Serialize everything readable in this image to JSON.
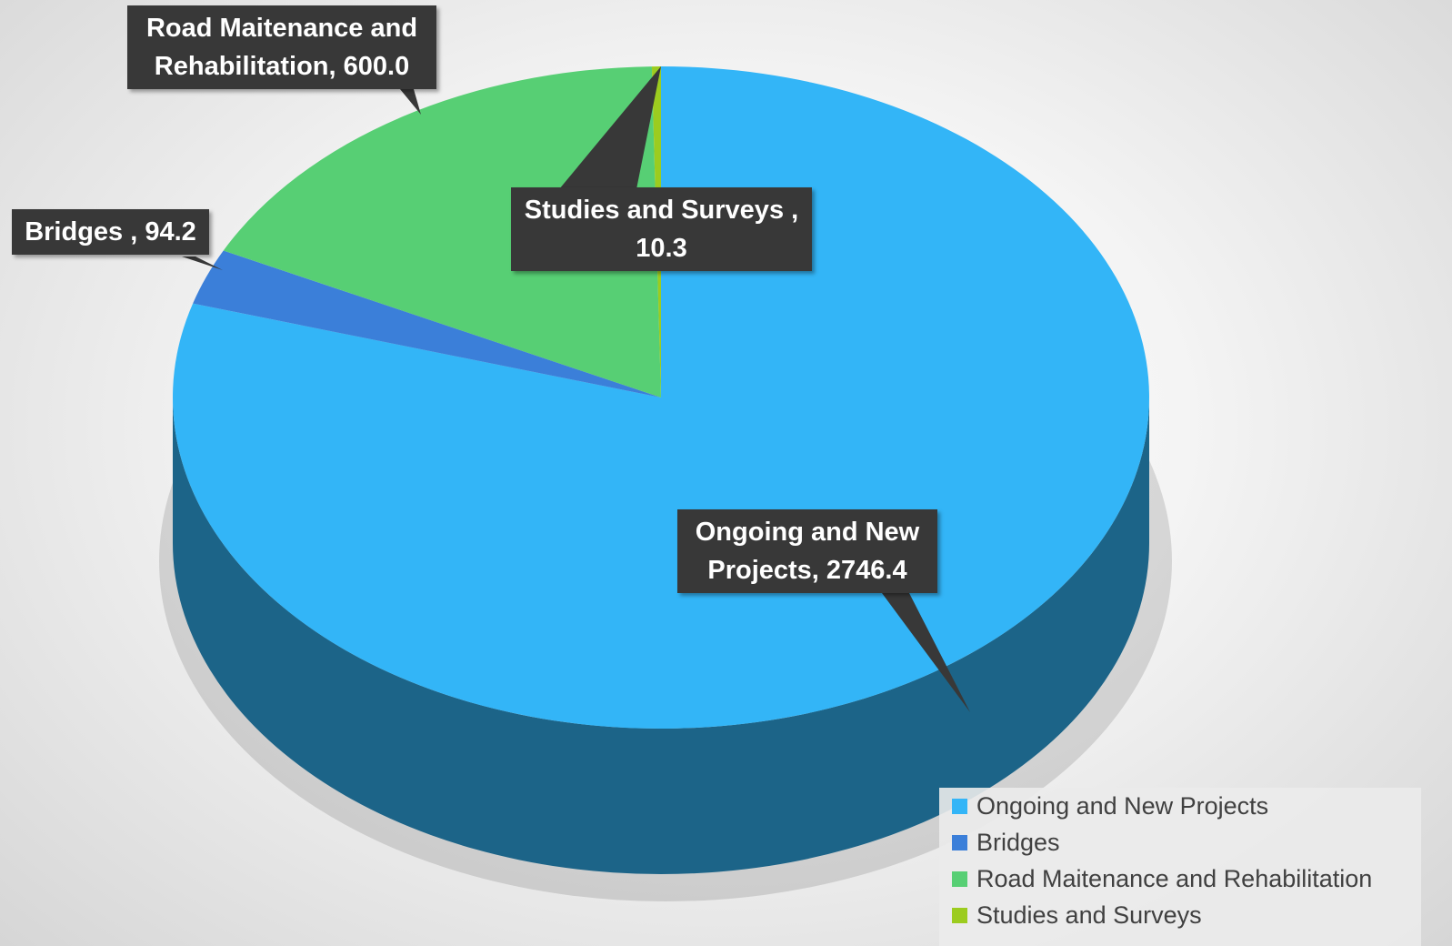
{
  "chart_data": {
    "type": "pie",
    "categories": [
      "Ongoing and New Projects",
      "Bridges",
      "Road Maitenance and Rehabilitation",
      "Studies and Surveys"
    ],
    "values": [
      2746.4,
      94.2,
      600.0,
      10.3
    ],
    "value_labels": [
      "Ongoing and New Projects, 2746.4",
      "Bridges , 94.2",
      "Road Maitenance and Rehabilitation, 600.0",
      "Studies and Surveys , 10.3"
    ],
    "colors": [
      "#33b5f7",
      "#3b7fd9",
      "#57cf74",
      "#9ccc1f"
    ],
    "legend": "bottom-right"
  }
}
